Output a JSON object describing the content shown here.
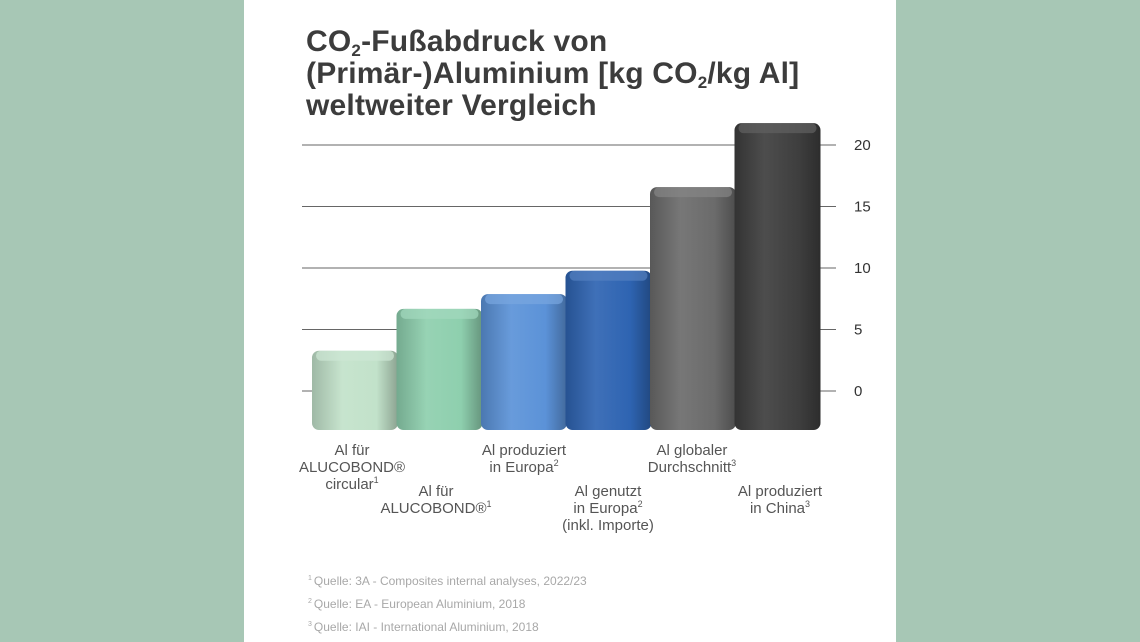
{
  "chart_data": {
    "type": "bar",
    "title_lines": [
      [
        "CO",
        "2",
        "-Fußabdruck von"
      ],
      [
        "(Primär-)Aluminium [kg CO",
        "2",
        "/kg Al]"
      ],
      [
        "weltweiter Vergleich",
        "",
        ""
      ]
    ],
    "ylim": [
      0,
      20
    ],
    "yticks": [
      "0",
      "5",
      "10",
      "15",
      "20"
    ],
    "grid": true,
    "categories": [
      {
        "lines": [
          [
            "Al für",
            ""
          ],
          [
            "ALUCOBOND®",
            ""
          ],
          [
            "circular",
            "1"
          ]
        ]
      },
      {
        "lines": [
          [
            "Al für",
            ""
          ],
          [
            "ALUCOBOND®",
            "1"
          ]
        ]
      },
      {
        "lines": [
          [
            "Al produziert",
            ""
          ],
          [
            "in Europa",
            "2"
          ]
        ]
      },
      {
        "lines": [
          [
            "Al genutzt",
            ""
          ],
          [
            "in Europa",
            "2"
          ],
          [
            "(inkl. Importe)",
            ""
          ]
        ]
      },
      {
        "lines": [
          [
            "Al globaler",
            ""
          ],
          [
            "Durchschnitt",
            "3"
          ]
        ]
      },
      {
        "lines": [
          [
            "Al produziert",
            ""
          ],
          [
            "in China",
            "3"
          ]
        ]
      }
    ],
    "values": [
      2.3,
      5.7,
      6.9,
      8.8,
      15.6,
      20.8
    ],
    "colors": [
      "#c2e2ca",
      "#8ecfae",
      "#5b92d8",
      "#2e64b2",
      "#6b6b6b",
      "#3e3e3e"
    ]
  },
  "footnotes": [
    {
      "mark": "1",
      "text": "Quelle: 3A - Composites internal analyses, 2022/23"
    },
    {
      "mark": "2",
      "text": "Quelle: EA - European Aluminium, 2018"
    },
    {
      "mark": "3",
      "text": "Quelle: IAI - International Aluminium, 2018"
    }
  ]
}
